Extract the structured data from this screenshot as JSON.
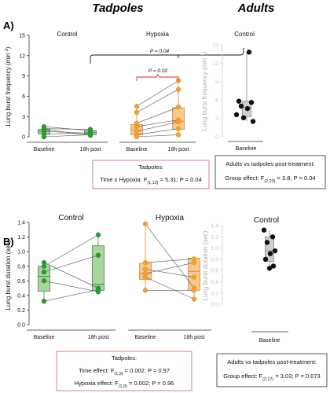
{
  "figure": {
    "group_titles": [
      "Tadpoles",
      "Adults"
    ],
    "panel_labels": [
      "A)",
      "B)"
    ]
  },
  "colors": {
    "control_fill": "#a8d5a0",
    "control_stroke": "#3c8a3c",
    "control_point": "#2a9a2a",
    "hypoxia_fill": "#f7c891",
    "hypoxia_stroke": "#d98a2b",
    "hypoxia_point": "#f0a030",
    "adult_fill": "#d0d0d0",
    "adult_stroke": "#888888",
    "adult_point": "#111111",
    "significance": "#e02020",
    "stat_box_red": "#e07070"
  },
  "chart_data": [
    {
      "type": "box-paired",
      "panel": "A",
      "ylabel": "Lung burst frequency (min-1)",
      "ylim": [
        0,
        15
      ],
      "yticks": [
        0,
        3,
        6,
        9,
        12,
        15
      ],
      "categories": [
        "Baseline",
        "18h post"
      ],
      "groups": [
        {
          "name": "Control",
          "box": [
            {
              "q1": 0.4,
              "median": 0.8,
              "q3": 1.1,
              "min": 0.0,
              "max": 1.5
            },
            {
              "q1": 0.3,
              "median": 0.6,
              "q3": 0.9,
              "min": 0.2,
              "max": 1.1
            }
          ],
          "pairs": [
            [
              0.0,
              0.3
            ],
            [
              0.4,
              0.6
            ],
            [
              0.8,
              0.5
            ],
            [
              1.1,
              0.2
            ],
            [
              1.5,
              0.9
            ],
            [
              1.2,
              1.1
            ]
          ]
        },
        {
          "name": "Hypoxia",
          "box": [
            {
              "q1": 0.3,
              "median": 1.0,
              "q3": 1.8,
              "min": 0.0,
              "max": 4.5
            },
            {
              "q1": 1.1,
              "median": 2.3,
              "q3": 4.3,
              "min": 0.3,
              "max": 8.3
            }
          ],
          "pairs": [
            [
              4.5,
              8.3
            ],
            [
              3.6,
              7.0
            ],
            [
              2.0,
              4.4
            ],
            [
              1.5,
              2.5
            ],
            [
              0.8,
              2.2
            ],
            [
              0.3,
              1.2
            ],
            [
              0.0,
              0.3
            ]
          ]
        }
      ],
      "significance": [
        {
          "label": "P = 0.02",
          "group": "Hypoxia",
          "from": "Baseline",
          "to": "18h post"
        },
        {
          "label": "P = 0.04",
          "from_group": "Tadpoles",
          "to_group": "Adults"
        }
      ],
      "stat_box": {
        "title": "Tadpoles:",
        "text": "Time x Hypoxia: F(1,12) = 5.31; P = 0.04"
      }
    },
    {
      "type": "box",
      "panel": "A-adults",
      "ylabel": "Lung burst frequency (min-1)",
      "ylim": [
        0,
        15
      ],
      "yticks": [
        0,
        3,
        6,
        9,
        12,
        15
      ],
      "group_name": "Control",
      "category": "Baseline",
      "box": {
        "q1": 3.3,
        "median": 4.8,
        "q3": 5.8,
        "min": 2.5,
        "max": 13.8
      },
      "points": [
        13.8,
        5.8,
        5.6,
        5.0,
        4.6,
        3.6,
        3.1,
        2.5
      ],
      "stat_box": {
        "title": "Adults vs tadpoles post-treatment:",
        "text": "Group effect: F(2,20) = 3.8; P = 0.04"
      }
    },
    {
      "type": "box-paired",
      "panel": "B",
      "ylabel": "Lung burst duration (sec)",
      "ylim": [
        0,
        1.4
      ],
      "yticks": [
        0,
        0.2,
        0.4,
        0.6,
        0.8,
        1.0,
        1.2,
        1.4
      ],
      "categories": [
        "Baseline",
        "18h post"
      ],
      "groups": [
        {
          "name": "Control",
          "box": [
            {
              "q1": 0.46,
              "median": 0.66,
              "q3": 0.8,
              "min": 0.32,
              "max": 0.85
            },
            {
              "q1": 0.47,
              "median": 0.55,
              "q3": 1.08,
              "min": 0.45,
              "max": 1.23
            }
          ],
          "pairs": [
            [
              0.85,
              0.5
            ],
            [
              0.8,
              1.23
            ],
            [
              0.72,
              0.95
            ],
            [
              0.6,
              0.45
            ],
            [
              0.32,
              0.48
            ]
          ]
        },
        {
          "name": "Hypoxia",
          "box": [
            {
              "q1": 0.62,
              "median": 0.7,
              "q3": 0.84,
              "min": 0.46,
              "max": 1.38
            },
            {
              "q1": 0.47,
              "median": 0.73,
              "q3": 0.91,
              "min": 0.35,
              "max": 0.93
            }
          ],
          "pairs": [
            [
              1.38,
              0.5
            ],
            [
              0.85,
              0.9
            ],
            [
              0.76,
              0.65
            ],
            [
              0.7,
              0.85
            ],
            [
              0.65,
              0.35
            ],
            [
              0.47,
              0.47
            ]
          ]
        }
      ],
      "stat_box": {
        "title": "Tadpoles:",
        "lines": [
          "Time effect: F(1,9) = 0.002; P = 0.97",
          "Hypoxia effect: F(1,9) = 0.002; P = 0.96"
        ]
      }
    },
    {
      "type": "box",
      "panel": "B-adults",
      "ylabel": "Lung burst duration (sec)",
      "ylim": [
        0,
        1.4
      ],
      "yticks": [
        0,
        0.2,
        0.4,
        0.6,
        0.8,
        1.0,
        1.2,
        1.4
      ],
      "group_name": "Control",
      "category": "Baseline",
      "box": {
        "q1": 0.76,
        "median": 0.95,
        "q3": 1.2,
        "min": 0.64,
        "max": 1.32
      },
      "points": [
        1.32,
        1.2,
        1.1,
        0.95,
        0.9,
        0.8,
        0.68,
        0.64
      ],
      "stat_box": {
        "title": "Adults vs tadpoles post-treatment:",
        "text": "Group effect: F(2,17) = 3.03; P = 0.073"
      }
    }
  ]
}
